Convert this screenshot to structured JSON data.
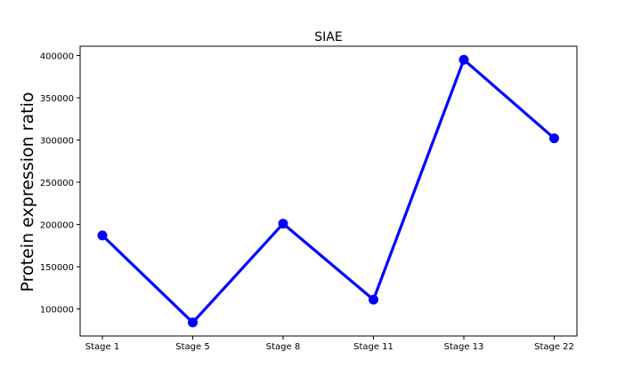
{
  "chart_data": {
    "type": "line",
    "title": "SIAE",
    "xlabel": "",
    "ylabel": "Protein expression ratio",
    "categories": [
      "Stage 1",
      "Stage 5",
      "Stage 8",
      "Stage 11",
      "Stage 13",
      "Stage 22"
    ],
    "series": [
      {
        "values": [
          187000,
          84000,
          201000,
          111000,
          395000,
          302000
        ],
        "color": "#0000ff"
      }
    ],
    "yticks": [
      100000,
      150000,
      200000,
      250000,
      300000,
      350000,
      400000
    ],
    "ytick_labels": [
      "100000",
      "150000",
      "200000",
      "250000",
      "300000",
      "350000",
      "400000"
    ],
    "ylim": [
      68000,
      411000
    ],
    "grid": false,
    "legend": false
  }
}
